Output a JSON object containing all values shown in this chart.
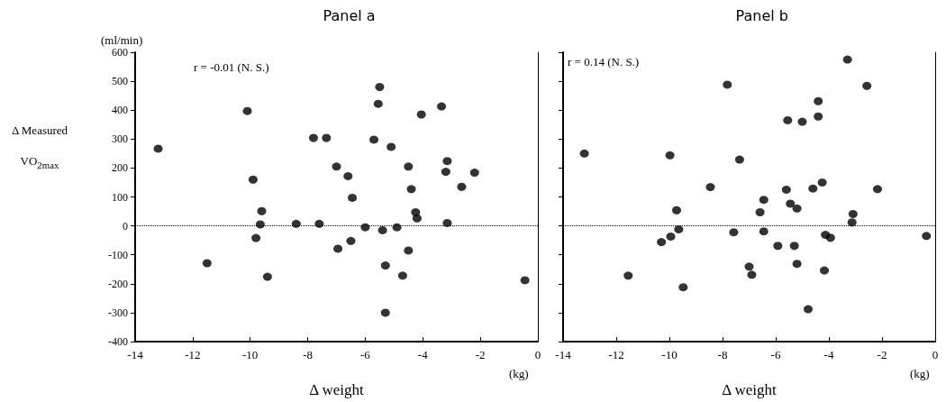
{
  "chart_data": [
    {
      "type": "scatter",
      "title": "Panel a",
      "xlabel": "Δ weight",
      "ylabel": "Δ Measured VO$_{2max}$",
      "annotations": [
        "(ml/min)",
        "r = -0.01 (N. S.)",
        "(kg)"
      ],
      "series": [
        {
          "color": "#000000",
          "x": [
            -13.2,
            -11.5,
            -10.1,
            -9.9,
            -9.8,
            -9.65,
            -9.6,
            -9.4,
            -8.4,
            -7.6,
            -7.8,
            -7.35,
            -7.0,
            -6.95,
            -6.6,
            -6.45,
            -6.5,
            -6.0,
            -5.7,
            -5.55,
            -5.5,
            -5.4,
            -5.3,
            -5.3,
            -5.1,
            -4.9,
            -4.7,
            -4.5,
            -4.5,
            -4.4,
            -4.25,
            -4.2,
            -4.05,
            -3.35,
            -3.2,
            -3.15,
            -3.15,
            -2.65,
            -2.2,
            -0.45
          ],
          "values": [
            267,
            -129,
            397,
            160,
            -42,
            5,
            51,
            -176,
            7,
            7,
            304,
            304,
            205,
            -79,
            172,
            97,
            -52,
            -5,
            298,
            422,
            480,
            -15,
            -137,
            -300,
            273,
            -5,
            -172,
            -85,
            205,
            127,
            47,
            26,
            385,
            413,
            187,
            224,
            10,
            135,
            184,
            -188
          ]
        }
      ],
      "xlim": [
        -14,
        0
      ],
      "xticks": [
        -14,
        -12,
        -10,
        -8,
        -6,
        -4,
        -2,
        0
      ],
      "ylim": [
        -400,
        600
      ],
      "yticks": [
        {
          "value": -400,
          "label": "-400"
        },
        {
          "value": -300,
          "label": "-300"
        },
        {
          "value": -200,
          "label": "-200"
        },
        {
          "value": -100,
          "label": "-100"
        },
        0,
        100,
        200,
        300,
        400,
        500,
        600
      ],
      "ref_lines": [
        {
          "axis": "y",
          "value": 0,
          "line_style": "dotted",
          "color": "#000000"
        }
      ],
      "marker": "circle",
      "grid": false
    },
    {
      "type": "scatter",
      "title": "Panel b",
      "xlabel": "Δ weight",
      "annotations": [
        "r = 0.14 (N. S.)",
        "(kg)"
      ],
      "series": [
        {
          "color": "#000000",
          "x": [
            -13.2,
            -11.55,
            -9.98,
            -10.3,
            -9.95,
            -9.65,
            -9.73,
            -9.48,
            -8.46,
            -7.82,
            -7.58,
            -7.36,
            -7.0,
            -6.9,
            -6.59,
            -6.45,
            -6.45,
            -5.92,
            -5.6,
            -5.55,
            -5.45,
            -5.2,
            -5.3,
            -5.2,
            -5.0,
            -4.78,
            -4.6,
            -4.4,
            -4.4,
            -4.25,
            -4.17,
            -4.13,
            -3.94,
            -3.3,
            -3.09,
            -3.13,
            -2.57,
            -2.17,
            -0.33
          ],
          "values": [
            250,
            -172,
            244,
            -56,
            -37,
            -12,
            54,
            -212,
            134,
            488,
            -22,
            229,
            -141,
            -169,
            47,
            90,
            -19,
            -69,
            125,
            365,
            77,
            60,
            -69,
            -131,
            360,
            -288,
            129,
            431,
            378,
            150,
            -154,
            -31,
            -41,
            575,
            41,
            12,
            484,
            127,
            -35
          ]
        }
      ],
      "xlim": [
        -14,
        0
      ],
      "xticks": [
        -14,
        -12,
        -10,
        -8,
        -6,
        -4,
        -2,
        0
      ],
      "ylim": [
        -400,
        600
      ],
      "yticks": [
        -400,
        -300,
        -200,
        -100,
        0,
        100,
        200,
        300,
        400,
        500,
        600
      ],
      "tick_labels": "x",
      "ref_lines": [
        {
          "axis": "y",
          "value": 0,
          "line_style": "dotted",
          "color": "#000000"
        }
      ],
      "marker": "circle",
      "grid": false
    }
  ]
}
